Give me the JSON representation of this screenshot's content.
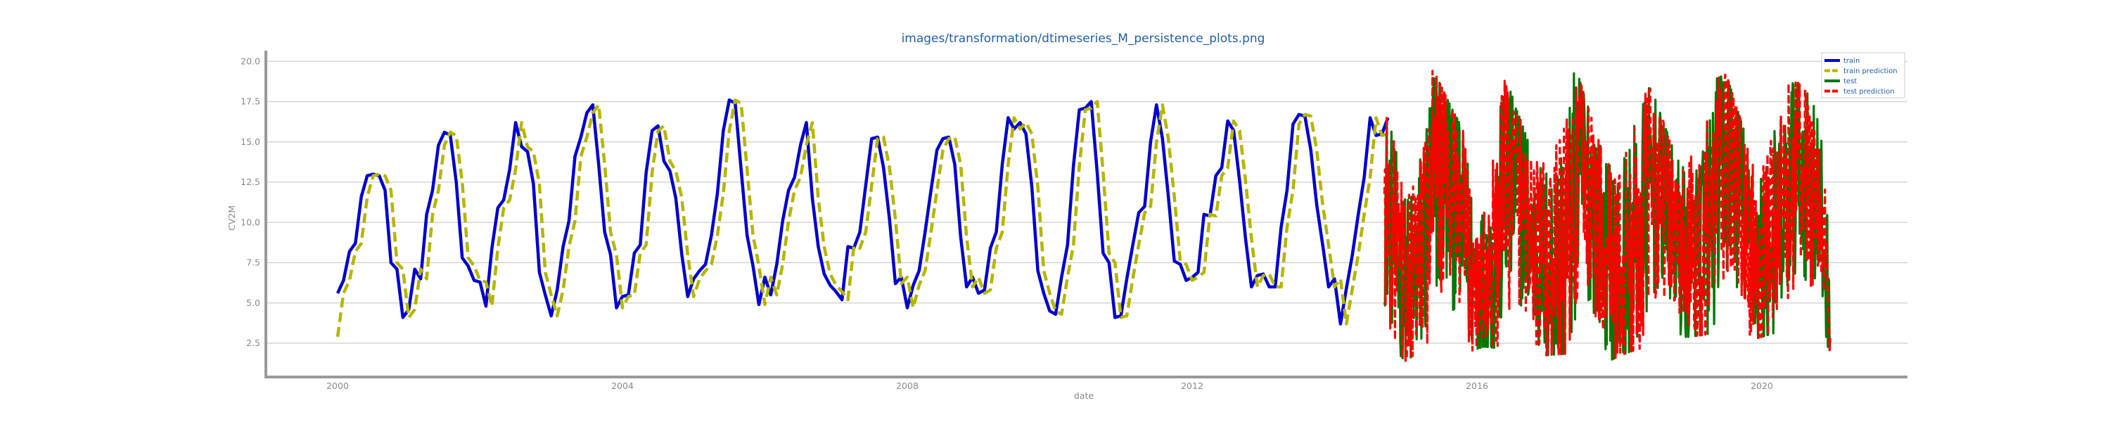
{
  "chart_data": {
    "type": "line",
    "title": "images/transformation/dtimeseries_M_persistence_plots.png",
    "xlabel": "date",
    "ylabel": "CV2M",
    "x_ticks": [
      "2000",
      "2004",
      "2008",
      "2012",
      "2016",
      "2020"
    ],
    "y_ticks": [
      "2.5",
      "5.0",
      "7.5",
      "10.0",
      "12.5",
      "15.0",
      "17.5",
      "20.0"
    ],
    "xlim": [
      1999.0,
      2021.0
    ],
    "ylim": [
      0.0,
      20.6
    ],
    "grid": "horizontal",
    "legend_position": "top-right",
    "series": [
      {
        "name": "train",
        "color": "#0000cc",
        "style": "solid",
        "start": 2000.0,
        "step": 0.08333,
        "values": [
          5.6,
          6.4,
          8.2,
          8.7,
          11.6,
          12.9,
          13.0,
          12.9,
          12.0,
          7.5,
          7.1,
          4.1,
          4.6,
          7.1,
          6.5,
          10.5,
          12.0,
          14.8,
          15.6,
          15.4,
          12.5,
          7.8,
          7.3,
          6.4,
          6.3,
          4.8,
          8.4,
          10.9,
          11.4,
          13.3,
          16.2,
          14.7,
          14.4,
          12.4,
          6.9,
          5.5,
          4.2,
          5.8,
          8.5,
          10.1,
          14.1,
          15.3,
          16.8,
          17.3,
          13.6,
          9.4,
          8.0,
          4.7,
          5.4,
          5.5,
          8.1,
          8.6,
          13.1,
          15.7,
          16.0,
          13.8,
          13.2,
          11.5,
          8.0,
          5.4,
          6.5,
          7.0,
          7.4,
          9.2,
          11.8,
          15.7,
          17.6,
          17.4,
          13.3,
          9.2,
          7.3,
          4.9,
          6.6,
          5.5,
          7.4,
          10.1,
          12.0,
          12.8,
          14.8,
          16.2,
          11.5,
          8.5,
          6.8,
          6.1,
          5.7,
          5.2,
          8.5,
          8.4,
          9.4,
          12.3,
          15.2,
          15.3,
          13.4,
          10.2,
          6.2,
          6.6,
          4.7,
          6.1,
          7.0,
          9.4,
          12.0,
          14.5,
          15.2,
          15.3,
          13.6,
          9.1,
          6.0,
          6.6,
          5.6,
          5.8,
          8.4,
          9.4,
          13.6,
          16.5,
          15.8,
          16.2,
          15.5,
          12.2,
          7.0,
          5.6,
          4.5,
          4.3,
          6.6,
          8.6,
          13.5,
          17.0,
          17.1,
          17.5,
          13.1,
          8.1,
          7.5,
          4.1,
          4.2,
          6.5,
          8.6,
          10.6,
          11.0,
          15.0,
          17.3,
          15.2,
          11.6,
          7.6,
          7.4,
          6.4,
          6.6,
          6.9,
          10.5,
          10.4,
          12.9,
          13.4,
          16.3,
          15.7,
          12.6,
          9.0,
          6.0,
          6.7,
          6.8,
          6.0,
          6.0,
          9.7,
          12.0,
          16.1,
          16.7,
          16.6,
          14.5,
          11.1,
          8.6,
          6.0,
          6.5,
          3.7,
          5.9,
          8.0,
          10.5,
          12.8,
          16.5,
          15.4,
          15.5,
          16.5
        ]
      },
      {
        "name": "train prediction",
        "color": "#b5b500",
        "style": "dashed",
        "start": 2000.0,
        "step": 0.08333,
        "values": [
          2.9,
          5.6,
          6.4,
          8.2,
          8.7,
          11.6,
          12.9,
          13.0,
          12.9,
          12.0,
          7.5,
          7.1,
          4.1,
          4.6,
          7.1,
          6.5,
          10.5,
          12.0,
          14.8,
          15.6,
          15.4,
          12.5,
          7.8,
          7.3,
          6.4,
          6.3,
          4.8,
          8.4,
          10.9,
          11.4,
          13.3,
          16.2,
          14.7,
          14.4,
          12.4,
          6.9,
          5.5,
          4.2,
          5.8,
          8.5,
          10.1,
          14.1,
          15.3,
          16.8,
          17.3,
          13.6,
          9.4,
          8.0,
          4.7,
          5.4,
          5.5,
          8.1,
          8.6,
          13.1,
          15.7,
          16.0,
          13.8,
          13.2,
          11.5,
          8.0,
          5.4,
          6.5,
          7.0,
          7.4,
          9.2,
          11.8,
          15.7,
          17.6,
          17.4,
          13.3,
          9.2,
          7.3,
          4.9,
          6.6,
          5.5,
          7.4,
          10.1,
          12.0,
          12.8,
          14.8,
          16.2,
          11.5,
          8.5,
          6.8,
          6.1,
          5.7,
          5.2,
          8.5,
          8.4,
          9.4,
          12.3,
          15.2,
          15.3,
          13.4,
          10.2,
          6.2,
          6.6,
          4.7,
          6.1,
          7.0,
          9.4,
          12.0,
          14.5,
          15.2,
          15.3,
          13.6,
          9.1,
          6.0,
          6.6,
          5.6,
          5.8,
          8.4,
          9.4,
          13.6,
          16.5,
          15.8,
          16.2,
          15.5,
          12.2,
          7.0,
          5.6,
          4.5,
          4.3,
          6.6,
          8.6,
          13.5,
          17.0,
          17.1,
          17.5,
          13.1,
          8.1,
          7.5,
          4.1,
          4.2,
          6.5,
          8.6,
          10.6,
          11.0,
          15.0,
          17.3,
          15.2,
          11.6,
          7.6,
          7.4,
          6.4,
          6.6,
          6.9,
          10.5,
          10.4,
          12.9,
          13.4,
          16.3,
          15.7,
          12.6,
          9.0,
          6.0,
          6.7,
          6.8,
          6.0,
          6.0,
          9.7,
          12.0,
          16.1,
          16.7,
          16.6,
          14.5,
          11.1,
          8.6,
          6.0,
          6.5,
          3.7,
          5.9,
          8.0,
          10.5,
          12.8,
          16.5,
          15.4,
          15.5
        ]
      },
      {
        "name": "test",
        "color": "#007700",
        "style": "solid",
        "start": 2014.7,
        "end": 2020.96,
        "y_range": [
          1.3,
          19.8
        ],
        "envelope": [
          {
            "x": 2014.7,
            "min": 2.5,
            "max": 16.9
          },
          {
            "x": 2015.0,
            "min": 1.4,
            "max": 14.0
          },
          {
            "x": 2015.35,
            "min": 2.5,
            "max": 19.8
          },
          {
            "x": 2015.7,
            "min": 1.7,
            "max": 16.6
          },
          {
            "x": 2016.1,
            "min": 2.3,
            "max": 13.5
          },
          {
            "x": 2016.4,
            "min": 2.1,
            "max": 19.0
          },
          {
            "x": 2016.8,
            "min": 1.7,
            "max": 14.0
          },
          {
            "x": 2017.1,
            "min": 1.8,
            "max": 18.3
          },
          {
            "x": 2017.4,
            "min": 1.9,
            "max": 19.4
          },
          {
            "x": 2017.8,
            "min": 1.3,
            "max": 13.8
          },
          {
            "x": 2018.1,
            "min": 1.9,
            "max": 18.6
          },
          {
            "x": 2018.45,
            "min": 2.4,
            "max": 18.3
          },
          {
            "x": 2018.8,
            "min": 2.8,
            "max": 14.0
          },
          {
            "x": 2019.15,
            "min": 3.0,
            "max": 18.5
          },
          {
            "x": 2019.5,
            "min": 3.3,
            "max": 19.2
          },
          {
            "x": 2019.85,
            "min": 2.7,
            "max": 14.3
          },
          {
            "x": 2020.15,
            "min": 3.1,
            "max": 18.5
          },
          {
            "x": 2020.5,
            "min": 3.6,
            "max": 18.7
          },
          {
            "x": 2020.8,
            "min": 3.3,
            "max": 17.2
          },
          {
            "x": 2020.96,
            "min": 2.0,
            "max": 10.5
          }
        ]
      },
      {
        "name": "test prediction",
        "color": "#ff0000",
        "style": "dashed",
        "start": 2014.7,
        "end": 2020.96,
        "y_range": [
          1.3,
          19.8
        ]
      }
    ]
  }
}
